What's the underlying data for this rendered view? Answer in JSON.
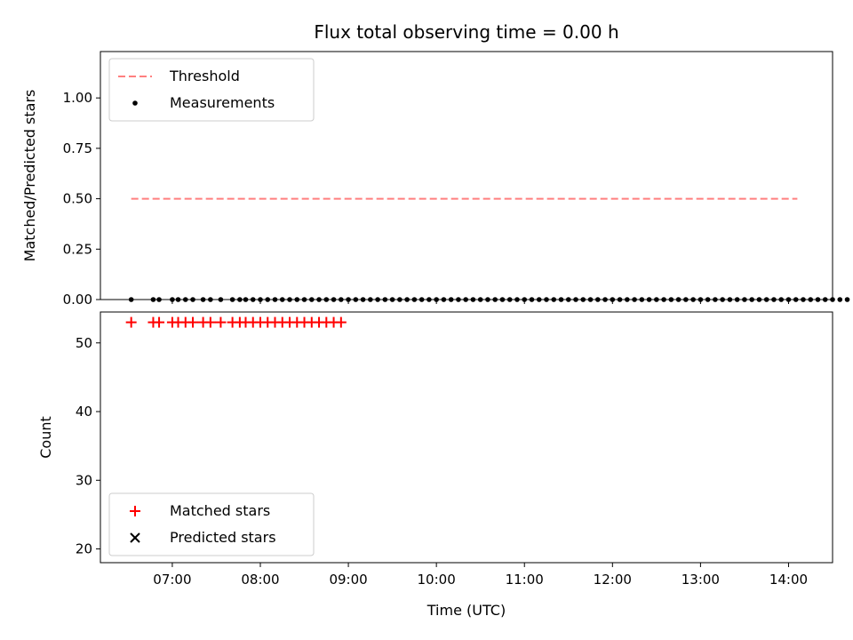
{
  "chart_data": {
    "type": "scatter",
    "title": "Flux total observing time = 0.00 h",
    "xlabel": "Time (UTC)",
    "xlim": [
      "06:11",
      "14:30"
    ],
    "x_ticks": [
      "07:00",
      "08:00",
      "09:00",
      "10:00",
      "11:00",
      "12:00",
      "13:00",
      "14:00"
    ],
    "panels": [
      {
        "ylabel": "Matched/Predicted stars",
        "ylim": [
          0,
          1.23
        ],
        "y_ticks": [
          "0.00",
          "0.25",
          "0.50",
          "0.75",
          "1.00"
        ],
        "legend_position": "upper-left",
        "series": [
          {
            "name": "Threshold",
            "kind": "line",
            "style": "dashed",
            "color": "#ff7f7f",
            "points": [
              [
                "06:32",
                0.5
              ],
              [
                "14:06",
                0.5
              ]
            ]
          },
          {
            "name": "Measurements",
            "kind": "scatter",
            "marker": "dot",
            "color": "#000000",
            "points": [
              [
                "06:32",
                0
              ],
              [
                "06:47",
                0
              ],
              [
                "06:51",
                0
              ],
              [
                "07:00",
                0
              ],
              [
                "07:04",
                0
              ],
              [
                "07:09",
                0
              ],
              [
                "07:14",
                0
              ],
              [
                "07:21",
                0
              ],
              [
                "07:26",
                0
              ],
              [
                "07:33",
                0
              ],
              [
                "07:41",
                0
              ],
              [
                "07:46",
                0
              ],
              [
                "07:50",
                0
              ],
              [
                "07:55",
                0
              ],
              [
                "08:00",
                0
              ],
              [
                "08:05",
                0
              ],
              [
                "08:10",
                0
              ],
              [
                "08:15",
                0
              ],
              [
                "08:20",
                0
              ],
              [
                "08:25",
                0
              ],
              [
                "08:30",
                0
              ],
              [
                "08:35",
                0
              ],
              [
                "08:40",
                0
              ],
              [
                "08:45",
                0
              ],
              [
                "08:50",
                0
              ],
              [
                "08:55",
                0
              ],
              [
                "09:00",
                0
              ],
              [
                "09:05",
                0
              ],
              [
                "09:10",
                0
              ],
              [
                "09:15",
                0
              ],
              [
                "09:20",
                0
              ],
              [
                "09:25",
                0
              ],
              [
                "09:30",
                0
              ],
              [
                "09:35",
                0
              ],
              [
                "09:40",
                0
              ],
              [
                "09:45",
                0
              ],
              [
                "09:50",
                0
              ],
              [
                "09:55",
                0
              ],
              [
                "10:00",
                0
              ],
              [
                "10:05",
                0
              ],
              [
                "10:10",
                0
              ],
              [
                "10:15",
                0
              ],
              [
                "10:20",
                0
              ],
              [
                "10:25",
                0
              ],
              [
                "10:30",
                0
              ],
              [
                "10:35",
                0
              ],
              [
                "10:40",
                0
              ],
              [
                "10:45",
                0
              ],
              [
                "10:50",
                0
              ],
              [
                "10:55",
                0
              ],
              [
                "11:00",
                0
              ],
              [
                "11:05",
                0
              ],
              [
                "11:10",
                0
              ],
              [
                "11:15",
                0
              ],
              [
                "11:20",
                0
              ],
              [
                "11:25",
                0
              ],
              [
                "11:30",
                0
              ],
              [
                "11:35",
                0
              ],
              [
                "11:40",
                0
              ],
              [
                "11:45",
                0
              ],
              [
                "11:50",
                0
              ],
              [
                "11:55",
                0
              ],
              [
                "12:00",
                0
              ],
              [
                "12:05",
                0
              ],
              [
                "12:10",
                0
              ],
              [
                "12:15",
                0
              ],
              [
                "12:20",
                0
              ],
              [
                "12:25",
                0
              ],
              [
                "12:30",
                0
              ],
              [
                "12:35",
                0
              ],
              [
                "12:40",
                0
              ],
              [
                "12:45",
                0
              ],
              [
                "12:50",
                0
              ],
              [
                "12:55",
                0
              ],
              [
                "13:00",
                0
              ],
              [
                "13:05",
                0
              ],
              [
                "13:10",
                0
              ],
              [
                "13:15",
                0
              ],
              [
                "13:20",
                0
              ],
              [
                "13:25",
                0
              ],
              [
                "13:30",
                0
              ],
              [
                "13:35",
                0
              ],
              [
                "13:40",
                0
              ],
              [
                "13:45",
                0
              ],
              [
                "13:50",
                0
              ],
              [
                "13:55",
                0
              ],
              [
                "14:00",
                0
              ],
              [
                "14:05",
                0
              ],
              [
                "14:10",
                0
              ],
              [
                "14:15",
                0
              ],
              [
                "14:20",
                0
              ],
              [
                "14:25",
                0
              ],
              [
                "14:30",
                0
              ],
              [
                "14:35",
                0
              ],
              [
                "14:40",
                0
              ]
            ]
          }
        ]
      },
      {
        "ylabel": "Count",
        "ylim": [
          18,
          54.5
        ],
        "y_ticks": [
          "20",
          "30",
          "40",
          "50"
        ],
        "legend_position": "lower-left",
        "series": [
          {
            "name": "Matched stars",
            "kind": "scatter",
            "marker": "plus",
            "color": "#ff0000",
            "points": [
              [
                "06:32",
                53
              ],
              [
                "06:47",
                53
              ],
              [
                "06:51",
                53
              ],
              [
                "07:00",
                53
              ],
              [
                "07:04",
                53
              ],
              [
                "07:09",
                53
              ],
              [
                "07:14",
                53
              ],
              [
                "07:21",
                53
              ],
              [
                "07:26",
                53
              ],
              [
                "07:33",
                53
              ],
              [
                "07:41",
                53
              ],
              [
                "07:46",
                53
              ],
              [
                "07:50",
                53
              ],
              [
                "07:55",
                53
              ],
              [
                "08:00",
                53
              ],
              [
                "08:05",
                53
              ],
              [
                "08:10",
                53
              ],
              [
                "08:15",
                53
              ],
              [
                "08:20",
                53
              ],
              [
                "08:25",
                53
              ],
              [
                "08:30",
                53
              ],
              [
                "08:35",
                53
              ],
              [
                "08:40",
                53
              ],
              [
                "08:45",
                53
              ],
              [
                "08:50",
                53
              ],
              [
                "08:55",
                53
              ]
            ]
          },
          {
            "name": "Predicted stars",
            "kind": "scatter",
            "marker": "cross",
            "color": "#000000",
            "points": []
          }
        ]
      }
    ]
  }
}
